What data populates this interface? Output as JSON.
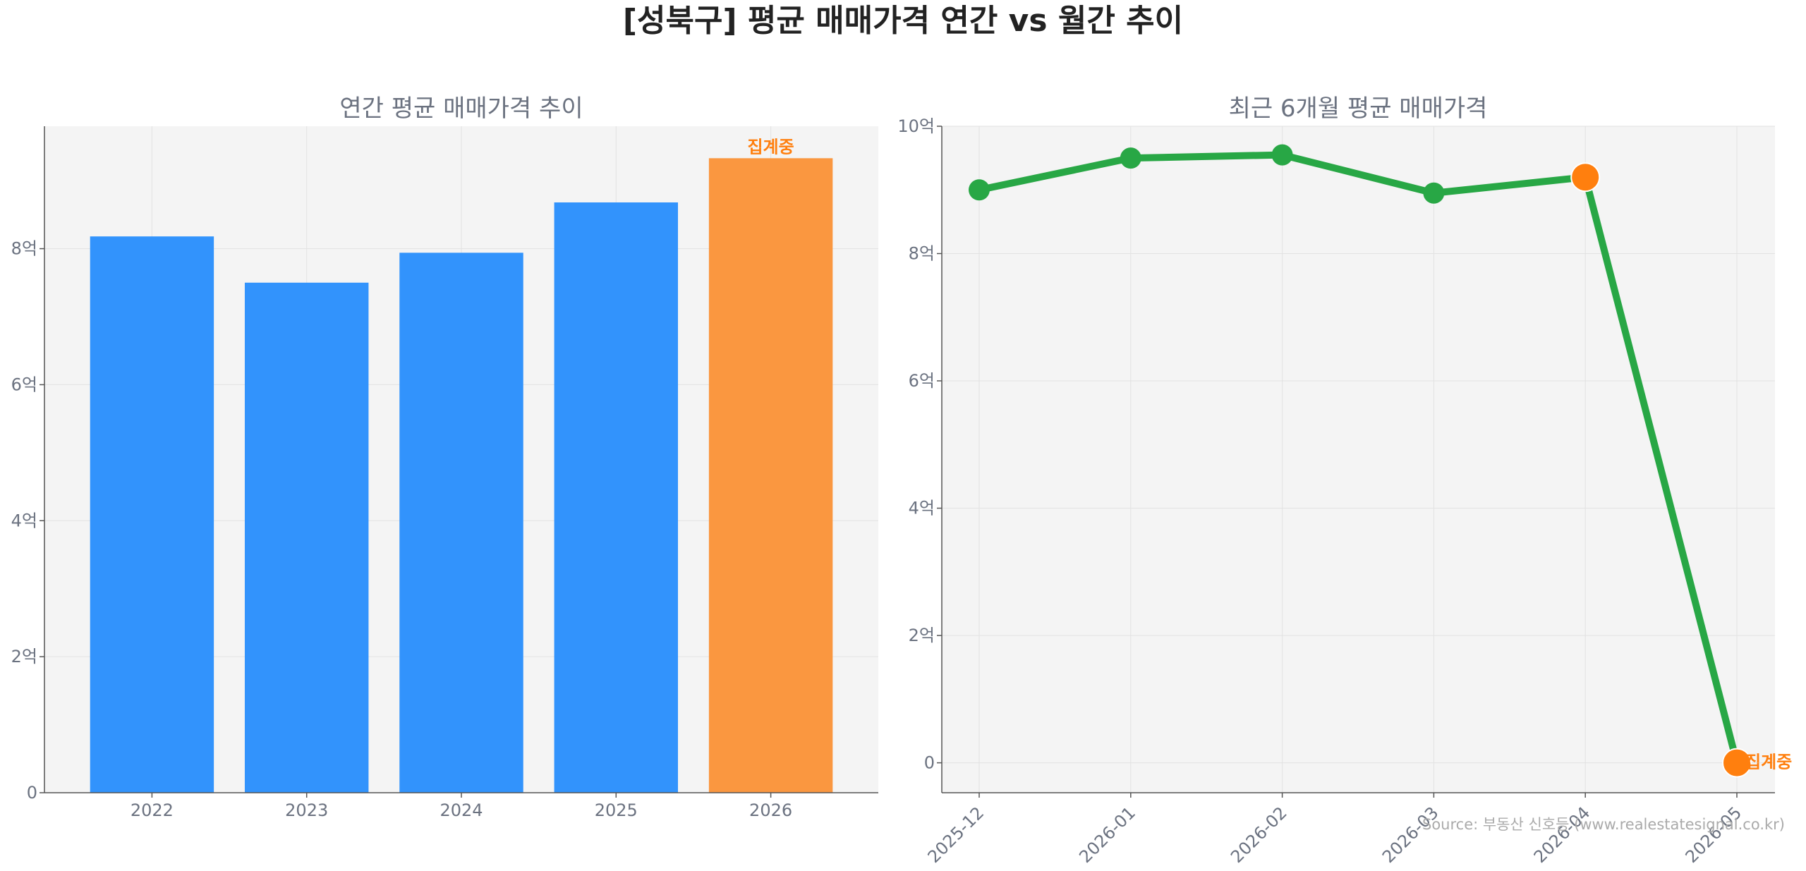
{
  "title": "[성북구] 평균 매매가격 연간 vs 월간 추이",
  "source": "Source: 부동산 신호등 (www.realestatesignal.co.kr)",
  "colors": {
    "bar": "#3293fc",
    "bar_highlight": "#fa9740",
    "line": "#28a745",
    "marker_highlight": "#ff7f0e",
    "annotation": "#ff7f0e",
    "plot_bg": "#f4f4f4"
  },
  "chart_data": [
    {
      "type": "bar",
      "title": "연간 평균 매매가격 추이",
      "categories": [
        "2022",
        "2023",
        "2024",
        "2025",
        "2026"
      ],
      "values": [
        8.18,
        7.5,
        7.94,
        8.68,
        9.33
      ],
      "highlight_index": 4,
      "annotation": {
        "category": "2026",
        "text": "집계중"
      },
      "yticks": [
        0,
        2,
        4,
        6,
        8
      ],
      "ytick_labels": [
        "0",
        "2억",
        "4억",
        "6억",
        "8억"
      ],
      "ylim": [
        0,
        9.8
      ],
      "unit": "억",
      "grid": true
    },
    {
      "type": "line",
      "title": "최근 6개월 평균 매매가격",
      "x": [
        "2025-12",
        "2026-01",
        "2026-02",
        "2026-03",
        "2026-04",
        "2026-05"
      ],
      "values": [
        9.0,
        9.5,
        9.55,
        8.95,
        9.2,
        0
      ],
      "highlight_indices": [
        4,
        5
      ],
      "annotation": {
        "x": "2026-05",
        "text": "집계중"
      },
      "yticks": [
        0,
        2,
        4,
        6,
        8,
        10
      ],
      "ytick_labels": [
        "0",
        "2억",
        "4억",
        "6억",
        "8억",
        "10억"
      ],
      "ylim": [
        -0.47,
        10
      ],
      "unit": "억",
      "grid": true
    }
  ]
}
